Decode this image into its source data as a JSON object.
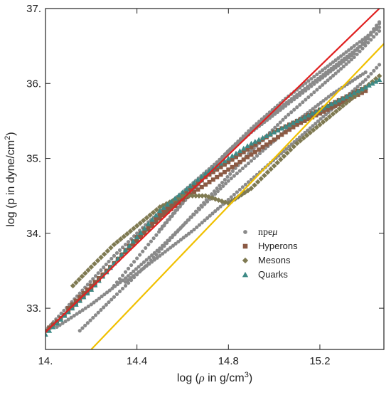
{
  "chart_data": {
    "type": "scatter",
    "title": "",
    "xlabel_prefix": "log (",
    "xlabel_rho": "ρ",
    "xlabel_mid": " in g/cm",
    "xlabel_sup": "3",
    "xlabel_suffix": ")",
    "ylabel_main": "log (p in dyne/cm",
    "ylabel_sup": "2",
    "ylabel_suffix": ")",
    "xlim": [
      14.0,
      15.48
    ],
    "ylim": [
      32.45,
      37.0
    ],
    "x_ticks": [
      14.0,
      14.4,
      14.8,
      15.2
    ],
    "x_tick_labels": [
      "14.",
      "14.4",
      "14.8",
      "15.2"
    ],
    "y_ticks": [
      33.0,
      34.0,
      35.0,
      36.0,
      37.0
    ],
    "y_tick_labels": [
      "33.",
      "34.",
      "35.",
      "36.",
      "37."
    ],
    "grid": false,
    "legend_position": "center-right",
    "colors": {
      "npemu": "#8a8a8a",
      "hyperons": "#8b5a44",
      "mesons": "#7f7a52",
      "quarks": "#3d8a86",
      "red_line": "#e02020",
      "yellow_line": "#f0c000"
    },
    "reference_lines": [
      {
        "color": "red",
        "x": [
          14.0,
          15.46
        ],
        "y": [
          32.68,
          37.0
        ]
      },
      {
        "color": "yellow",
        "x": [
          14.2,
          15.48
        ],
        "y": [
          32.45,
          36.53
        ]
      }
    ],
    "series": [
      {
        "name": "npeμ",
        "name_base": "npe",
        "name_greek": "μ",
        "marker": "circle",
        "curves": [
          {
            "x": [
              14.0,
              14.15,
              14.3,
              14.45,
              14.6,
              14.75,
              14.9,
              15.05,
              15.2,
              15.35,
              15.46
            ],
            "y": [
              32.7,
              33.2,
              33.7,
              34.15,
              34.55,
              34.95,
              35.35,
              35.7,
              36.05,
              36.4,
              36.82
            ]
          },
          {
            "x": [
              14.15,
              14.3,
              14.45,
              14.6,
              14.75,
              14.9,
              15.05,
              15.2,
              15.35,
              15.46
            ],
            "y": [
              32.7,
              33.15,
              33.6,
              34.1,
              34.6,
              35.1,
              35.55,
              35.95,
              36.35,
              36.7
            ]
          },
          {
            "x": [
              14.3,
              14.45,
              14.6,
              14.75,
              14.9,
              15.05,
              15.2,
              15.35,
              15.46
            ],
            "y": [
              33.3,
              33.85,
              34.4,
              34.95,
              35.4,
              35.8,
              36.15,
              36.5,
              36.75
            ]
          },
          {
            "x": [
              14.35,
              14.5,
              14.65,
              14.8,
              14.95,
              15.1,
              15.25,
              15.4,
              15.46
            ],
            "y": [
              33.35,
              33.7,
              34.05,
              34.45,
              34.85,
              35.25,
              35.65,
              36.05,
              36.25
            ]
          },
          {
            "x": [
              14.05,
              14.2,
              14.35,
              14.5,
              14.65,
              14.8,
              14.95,
              15.1,
              15.25,
              15.4
            ],
            "y": [
              32.75,
              33.05,
              33.4,
              33.8,
              34.25,
              34.7,
              35.1,
              35.5,
              35.85,
              36.15
            ]
          },
          {
            "x": [
              14.5,
              14.65,
              14.8,
              14.95,
              15.1,
              15.25,
              15.4,
              15.46
            ],
            "y": [
              34.05,
              34.6,
              35.1,
              35.5,
              35.85,
              36.2,
              36.55,
              36.8
            ]
          }
        ]
      },
      {
        "name": "Hyperons",
        "marker": "square",
        "curves": [
          {
            "x": [
              14.0,
              14.1,
              14.2,
              14.3,
              14.4,
              14.5,
              14.6,
              14.7,
              14.8,
              14.9,
              15.0,
              15.1,
              15.2,
              15.3,
              15.4
            ],
            "y": [
              32.7,
              32.95,
              33.25,
              33.6,
              33.95,
              34.25,
              34.5,
              34.75,
              34.95,
              35.15,
              35.35,
              35.5,
              35.65,
              35.8,
              35.95
            ]
          },
          {
            "x": [
              14.1,
              14.2,
              14.3,
              14.4,
              14.5,
              14.6,
              14.7,
              14.8,
              14.9,
              15.0,
              15.1,
              15.2,
              15.3,
              15.4
            ],
            "y": [
              33.0,
              33.3,
              33.6,
              33.9,
              34.2,
              34.45,
              34.65,
              34.85,
              35.05,
              35.25,
              35.45,
              35.6,
              35.75,
              35.9
            ]
          }
        ]
      },
      {
        "name": "Mesons",
        "marker": "diamond",
        "curves": [
          {
            "x": [
              14.12,
              14.2,
              14.3,
              14.4,
              14.5,
              14.6,
              14.7,
              14.8,
              14.9,
              15.0,
              15.1,
              15.2,
              15.3,
              15.4,
              15.46
            ],
            "y": [
              33.3,
              33.55,
              33.85,
              34.1,
              34.35,
              34.5,
              34.5,
              34.4,
              34.6,
              34.9,
              35.2,
              35.45,
              35.7,
              35.95,
              36.1
            ]
          }
        ]
      },
      {
        "name": "Quarks",
        "marker": "triangle",
        "curves": [
          {
            "x": [
              14.0,
              14.1,
              14.2,
              14.3,
              14.4,
              14.5,
              14.6,
              14.7,
              14.8,
              14.9,
              15.0,
              15.1,
              15.2,
              15.3,
              15.4,
              15.46
            ],
            "y": [
              32.65,
              32.95,
              33.25,
              33.6,
              33.95,
              34.3,
              34.55,
              34.8,
              35.0,
              35.2,
              35.35,
              35.5,
              35.65,
              35.8,
              35.95,
              36.05
            ]
          }
        ]
      }
    ]
  }
}
